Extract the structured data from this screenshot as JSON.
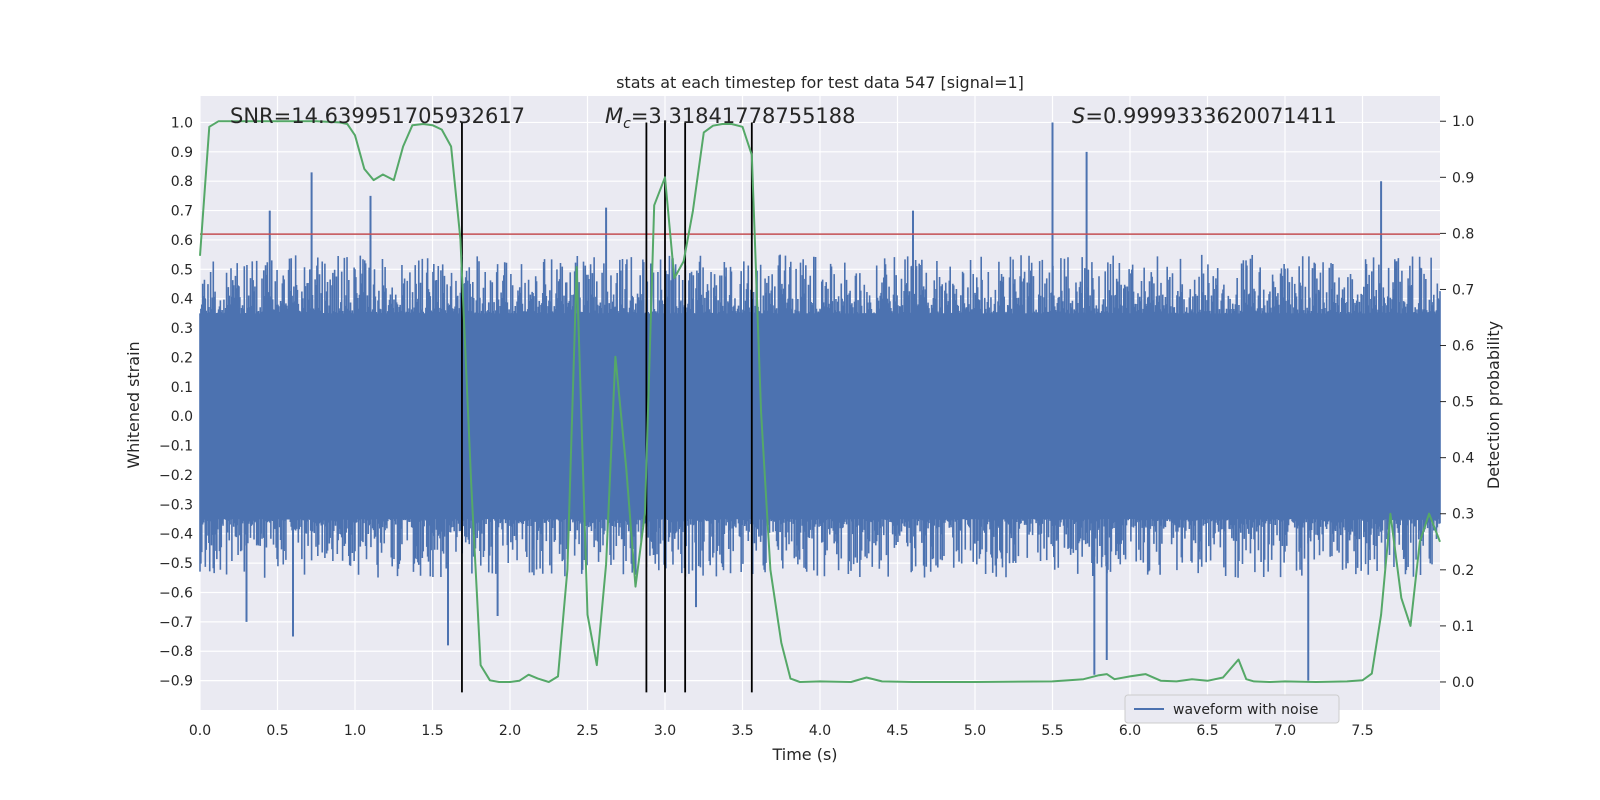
{
  "chart_data": {
    "type": "line",
    "title": "stats at each timestep for test data 547 [signal=1]",
    "xlabel": "Time (s)",
    "ylabel_left": "Whitened strain",
    "ylabel_right": "Detection probability",
    "xlim": [
      0.0,
      8.0
    ],
    "ylim_left": [
      -1.0,
      1.09
    ],
    "ylim_right": [
      -0.05,
      1.045
    ],
    "x_ticks": [
      0.0,
      0.5,
      1.0,
      1.5,
      2.0,
      2.5,
      3.0,
      3.5,
      4.0,
      4.5,
      5.0,
      5.5,
      6.0,
      6.5,
      7.0,
      7.5
    ],
    "x_tick_labels": [
      "0.0",
      "0.5",
      "1.0",
      "1.5",
      "2.0",
      "2.5",
      "3.0",
      "3.5",
      "4.0",
      "4.5",
      "5.0",
      "5.5",
      "6.0",
      "6.5",
      "7.0",
      "7.5"
    ],
    "y_left_ticks": [
      -0.9,
      -0.8,
      -0.7,
      -0.6,
      -0.5,
      -0.4,
      -0.3,
      -0.2,
      -0.1,
      0.0,
      0.1,
      0.2,
      0.3,
      0.4,
      0.5,
      0.6,
      0.7,
      0.8,
      0.9,
      1.0
    ],
    "y_left_tick_labels": [
      "−0.9",
      "−0.8",
      "−0.7",
      "−0.6",
      "−0.5",
      "−0.4",
      "−0.3",
      "−0.2",
      "−0.1",
      "0.0",
      "0.1",
      "0.2",
      "0.3",
      "0.4",
      "0.5",
      "0.6",
      "0.7",
      "0.8",
      "0.9",
      "1.0"
    ],
    "y_right_ticks": [
      0.0,
      0.1,
      0.2,
      0.3,
      0.4,
      0.5,
      0.6,
      0.7,
      0.8,
      0.9,
      1.0
    ],
    "y_right_tick_labels": [
      "0.0",
      "0.1",
      "0.2",
      "0.3",
      "0.4",
      "0.5",
      "0.6",
      "0.7",
      "0.8",
      "0.9",
      "1.0"
    ],
    "grid": true,
    "legend": {
      "placement": "lower-right",
      "entries": [
        "waveform with noise"
      ]
    },
    "annotations": {
      "snr": "SNR=14.639951705932617",
      "mc_symbol": "M",
      "mc_subscript": "c",
      "mc_value": "=3.31841778755188",
      "s_symbol": "S",
      "s_value": "=0.9999333620071411"
    },
    "colors": {
      "waveform": "#4c72b0",
      "probability": "#55a868",
      "threshold": "#c44e52",
      "marker": "#000000",
      "plot_background": "#eaeaf2",
      "grid": "#ffffff"
    },
    "series": [
      {
        "name": "waveform with noise",
        "kind": "noise-envelope",
        "axis": "left",
        "x_range": [
          0.0,
          8.0
        ],
        "typical_range": [
          -0.35,
          0.35
        ],
        "envelope_range": [
          -0.55,
          0.55
        ],
        "spikes": [
          {
            "x": 0.3,
            "y": -0.7
          },
          {
            "x": 0.45,
            "y": 0.7
          },
          {
            "x": 0.6,
            "y": -0.75
          },
          {
            "x": 0.72,
            "y": 0.83
          },
          {
            "x": 1.1,
            "y": 0.75
          },
          {
            "x": 1.6,
            "y": -0.78
          },
          {
            "x": 1.92,
            "y": -0.68
          },
          {
            "x": 2.62,
            "y": 0.71
          },
          {
            "x": 3.2,
            "y": -0.65
          },
          {
            "x": 4.6,
            "y": 0.7
          },
          {
            "x": 5.5,
            "y": 1.0
          },
          {
            "x": 5.72,
            "y": 0.9
          },
          {
            "x": 5.77,
            "y": -0.88
          },
          {
            "x": 5.85,
            "y": -0.83
          },
          {
            "x": 7.15,
            "y": -0.9
          },
          {
            "x": 7.62,
            "y": 0.8
          }
        ]
      },
      {
        "name": "",
        "kind": "line",
        "axis": "right",
        "x": [
          0.0,
          0.06,
          0.12,
          0.25,
          0.5,
          0.75,
          0.9,
          0.95,
          1.0,
          1.06,
          1.12,
          1.18,
          1.25,
          1.31,
          1.37,
          1.44,
          1.5,
          1.56,
          1.62,
          1.68,
          1.75,
          1.81,
          1.87,
          1.93,
          2.0,
          2.06,
          2.12,
          2.18,
          2.25,
          2.31,
          2.37,
          2.43,
          2.5,
          2.56,
          2.62,
          2.68,
          2.75,
          2.81,
          2.87,
          2.93,
          3.0,
          3.06,
          3.12,
          3.18,
          3.25,
          3.31,
          3.37,
          3.43,
          3.5,
          3.56,
          3.62,
          3.68,
          3.75,
          3.81,
          3.87,
          4.0,
          4.2,
          4.3,
          4.4,
          4.6,
          5.0,
          5.5,
          5.7,
          5.8,
          5.85,
          5.9,
          6.0,
          6.1,
          6.2,
          6.3,
          6.4,
          6.5,
          6.6,
          6.7,
          6.75,
          6.8,
          6.9,
          7.0,
          7.2,
          7.4,
          7.5,
          7.56,
          7.62,
          7.68,
          7.75,
          7.81,
          7.87,
          7.93,
          8.0
        ],
        "y": [
          0.76,
          0.99,
          1.0,
          1.0,
          1.0,
          1.0,
          0.998,
          0.995,
          0.975,
          0.915,
          0.895,
          0.905,
          0.895,
          0.955,
          0.993,
          0.995,
          0.993,
          0.985,
          0.955,
          0.79,
          0.35,
          0.03,
          0.003,
          0.0,
          0.0,
          0.002,
          0.013,
          0.006,
          0.0,
          0.01,
          0.2,
          0.74,
          0.12,
          0.03,
          0.21,
          0.58,
          0.38,
          0.17,
          0.3,
          0.85,
          0.9,
          0.72,
          0.75,
          0.84,
          0.98,
          0.992,
          0.995,
          0.995,
          0.99,
          0.94,
          0.48,
          0.2,
          0.07,
          0.006,
          0.0,
          0.001,
          0.0,
          0.008,
          0.001,
          0.0,
          0.0,
          0.001,
          0.005,
          0.012,
          0.014,
          0.005,
          0.01,
          0.014,
          0.002,
          0.001,
          0.005,
          0.002,
          0.008,
          0.04,
          0.005,
          0.001,
          0.0,
          0.001,
          0.0,
          0.001,
          0.003,
          0.015,
          0.12,
          0.3,
          0.15,
          0.1,
          0.25,
          0.3,
          0.25
        ]
      }
    ],
    "threshold": {
      "axis": "left",
      "y": 0.62
    },
    "vertical_markers": {
      "x": [
        1.69,
        2.88,
        3.0,
        3.13,
        3.56
      ],
      "y_range": [
        -0.94,
        1.0
      ]
    }
  }
}
